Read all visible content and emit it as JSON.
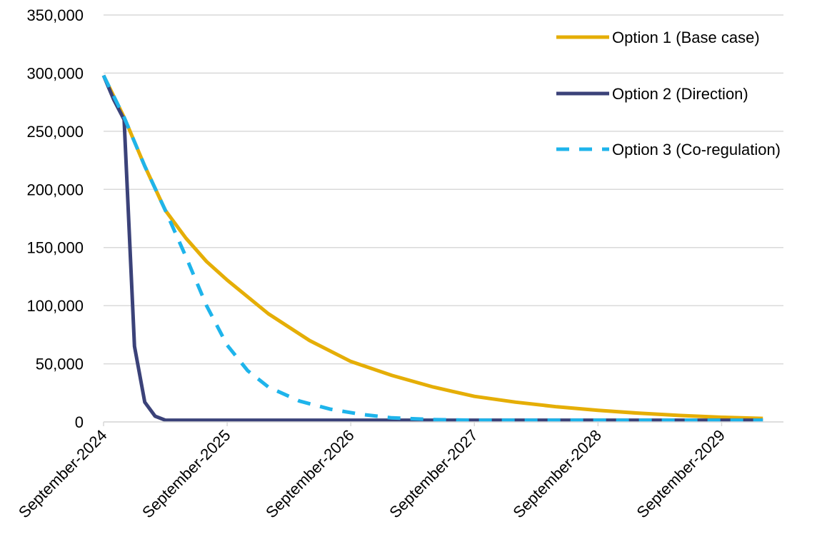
{
  "chart_data": {
    "type": "line",
    "title": "",
    "xlabel": "",
    "ylabel": "",
    "ylim": [
      0,
      350000
    ],
    "yticks": [
      0,
      50000,
      100000,
      150000,
      200000,
      250000,
      300000,
      350000
    ],
    "ytick_labels": [
      "0",
      "50,000",
      "100,000",
      "150,000",
      "200,000",
      "250,000",
      "300,000",
      "350,000"
    ],
    "xlim": [
      "2024-09",
      "2030-03"
    ],
    "xticks": [
      "2024-09",
      "2025-09",
      "2026-09",
      "2027-09",
      "2028-09",
      "2029-09"
    ],
    "xtick_labels": [
      "September-2024",
      "September-2025",
      "September-2026",
      "September-2027",
      "September-2028",
      "September-2029"
    ],
    "grid": "horizontal",
    "legend_position": "top-right",
    "series": [
      {
        "name": "Option 1 (Base case)",
        "color": "#E5AE06",
        "dash": "solid",
        "points": [
          [
            "2024-09",
            298000
          ],
          [
            "2024-11",
            262000
          ],
          [
            "2025-01",
            220000
          ],
          [
            "2025-03",
            182000
          ],
          [
            "2025-05",
            158000
          ],
          [
            "2025-07",
            138000
          ],
          [
            "2025-09",
            122000
          ],
          [
            "2026-01",
            93000
          ],
          [
            "2026-05",
            70000
          ],
          [
            "2026-09",
            52000
          ],
          [
            "2027-01",
            40000
          ],
          [
            "2027-05",
            30000
          ],
          [
            "2027-09",
            22000
          ],
          [
            "2028-01",
            17000
          ],
          [
            "2028-05",
            13000
          ],
          [
            "2028-09",
            10000
          ],
          [
            "2029-01",
            7500
          ],
          [
            "2029-05",
            5500
          ],
          [
            "2029-09",
            4000
          ],
          [
            "2030-01",
            3000
          ]
        ]
      },
      {
        "name": "Option 2 (Direction)",
        "color": "#3B4279",
        "dash": "solid",
        "points": [
          [
            "2024-09",
            298000
          ],
          [
            "2024-10",
            277000
          ],
          [
            "2024-11",
            260000
          ],
          [
            "2024-12",
            65000
          ],
          [
            "2025-01",
            17000
          ],
          [
            "2025-02",
            5000
          ],
          [
            "2025-03",
            1500
          ],
          [
            "2025-09",
            1500
          ],
          [
            "2026-09",
            1500
          ],
          [
            "2027-09",
            1500
          ],
          [
            "2028-09",
            1500
          ],
          [
            "2029-09",
            1500
          ],
          [
            "2030-01",
            1500
          ]
        ]
      },
      {
        "name": "Option 3 (Co-regulation)",
        "color": "#1EB4EB",
        "dash": "dashed",
        "points": [
          [
            "2024-09",
            298000
          ],
          [
            "2024-11",
            262000
          ],
          [
            "2025-01",
            220000
          ],
          [
            "2025-03",
            182000
          ],
          [
            "2025-05",
            142000
          ],
          [
            "2025-07",
            100000
          ],
          [
            "2025-09",
            66000
          ],
          [
            "2025-11",
            44000
          ],
          [
            "2026-01",
            30000
          ],
          [
            "2026-04",
            18000
          ],
          [
            "2026-07",
            11000
          ],
          [
            "2026-10",
            6500
          ],
          [
            "2027-01",
            3500
          ],
          [
            "2027-05",
            2000
          ],
          [
            "2027-09",
            1500
          ],
          [
            "2028-09",
            1500
          ],
          [
            "2029-09",
            1500
          ],
          [
            "2030-01",
            1500
          ]
        ]
      }
    ]
  }
}
